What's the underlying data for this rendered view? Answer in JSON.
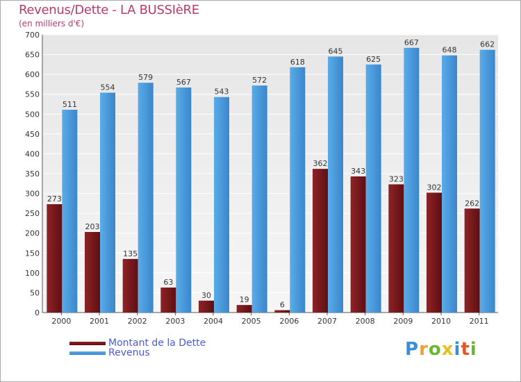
{
  "chart_data": {
    "type": "bar",
    "title": "Revenus/Dette - LA BUSSIèRE",
    "subtitle": "(en milliers d'€)",
    "xlabel": "",
    "ylabel": "",
    "ylim": [
      0,
      700
    ],
    "yticks": [
      "0",
      "50",
      "100",
      "150",
      "200",
      "250",
      "300",
      "350",
      "400",
      "450",
      "500",
      "550",
      "600",
      "650",
      "700"
    ],
    "grid": true,
    "categories": [
      "2000",
      "2001",
      "2002",
      "2003",
      "2004",
      "2005",
      "2006",
      "2007",
      "2008",
      "2009",
      "2010",
      "2011"
    ],
    "series": [
      {
        "name": "Montant de la Dette",
        "color": "#7b1a1e",
        "values": [
          273,
          203,
          135,
          63,
          30,
          19,
          6,
          362,
          343,
          323,
          302,
          262
        ]
      },
      {
        "name": "Revenus",
        "color": "#4d9ee0",
        "values": [
          511,
          554,
          579,
          567,
          543,
          572,
          618,
          645,
          625,
          667,
          648,
          662
        ]
      }
    ],
    "legend_position": "bottom-left"
  },
  "logo": {
    "letters": [
      "P",
      "r",
      "o",
      "x",
      "i",
      "t",
      "i"
    ],
    "colors": [
      "#3a8fd8",
      "#f0a030",
      "#6ab830",
      "#e8c020",
      "#3a8fd8",
      "#e05828",
      "#6ab830"
    ]
  }
}
